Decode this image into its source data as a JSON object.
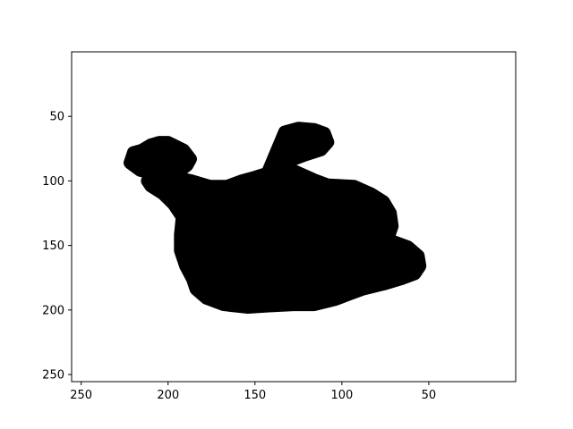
{
  "chart_data": {
    "type": "scatter",
    "title": "",
    "xlabel": "",
    "ylabel": "",
    "x_inverted": true,
    "y_inverted": true,
    "xlim": [
      255.5,
      0
    ],
    "ylim": [
      255.5,
      0
    ],
    "x_ticks": [
      250,
      200,
      150,
      100,
      50
    ],
    "y_ticks": [
      50,
      100,
      150,
      200,
      250
    ],
    "grid": false,
    "legend": "none",
    "series": [
      {
        "marker_color": "#000000",
        "shape": "filled silhouette of a bunny",
        "outline": [
          [
            133,
            62
          ],
          [
            125,
            59
          ],
          [
            116,
            60
          ],
          [
            110,
            63
          ],
          [
            108,
            70
          ],
          [
            112,
            76
          ],
          [
            121,
            80
          ],
          [
            133,
            86
          ],
          [
            131,
            90
          ],
          [
            121,
            96
          ],
          [
            116,
            99
          ],
          [
            108,
            103
          ],
          [
            93,
            104
          ],
          [
            83,
            110
          ],
          [
            76,
            116
          ],
          [
            72,
            125
          ],
          [
            71,
            135
          ],
          [
            73,
            143
          ],
          [
            72,
            146
          ],
          [
            62,
            151
          ],
          [
            56,
            158
          ],
          [
            55,
            166
          ],
          [
            58,
            172
          ],
          [
            66,
            176
          ],
          [
            76,
            180
          ],
          [
            88,
            184
          ],
          [
            96,
            188
          ],
          [
            104,
            192
          ],
          [
            116,
            196
          ],
          [
            128,
            196
          ],
          [
            142,
            197
          ],
          [
            154,
            198
          ],
          [
            168,
            196
          ],
          [
            178,
            191
          ],
          [
            184,
            184
          ],
          [
            186,
            176
          ],
          [
            190,
            166
          ],
          [
            193,
            154
          ],
          [
            193,
            142
          ],
          [
            192,
            128
          ],
          [
            197,
            118
          ],
          [
            203,
            110
          ],
          [
            210,
            104
          ],
          [
            212,
            100
          ],
          [
            206,
            92
          ],
          [
            193,
            92
          ],
          [
            189,
            88
          ],
          [
            187,
            83
          ],
          [
            191,
            76
          ],
          [
            197,
            72
          ],
          [
            200,
            70
          ],
          [
            205,
            70
          ],
          [
            210,
            72
          ],
          [
            215,
            76
          ],
          [
            220,
            78
          ],
          [
            222,
            86
          ],
          [
            216,
            92
          ],
          [
            200,
            96
          ],
          [
            186,
            100
          ],
          [
            176,
            104
          ],
          [
            166,
            104
          ],
          [
            158,
            100
          ],
          [
            150,
            97
          ],
          [
            143,
            94
          ]
        ]
      }
    ]
  }
}
